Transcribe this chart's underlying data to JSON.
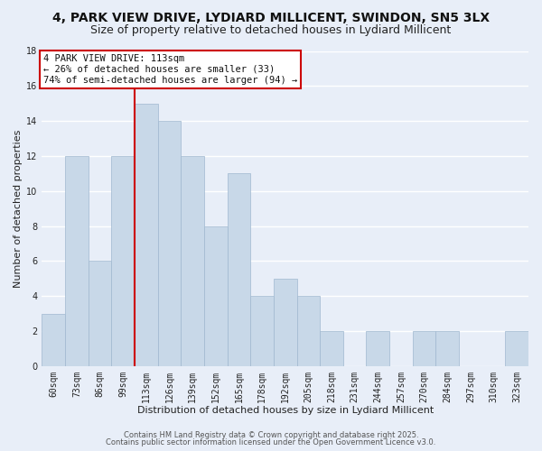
{
  "title": "4, PARK VIEW DRIVE, LYDIARD MILLICENT, SWINDON, SN5 3LX",
  "subtitle": "Size of property relative to detached houses in Lydiard Millicent",
  "xlabel": "Distribution of detached houses by size in Lydiard Millicent",
  "ylabel": "Number of detached properties",
  "bin_labels": [
    "60sqm",
    "73sqm",
    "86sqm",
    "99sqm",
    "113sqm",
    "126sqm",
    "139sqm",
    "152sqm",
    "165sqm",
    "178sqm",
    "192sqm",
    "205sqm",
    "218sqm",
    "231sqm",
    "244sqm",
    "257sqm",
    "270sqm",
    "284sqm",
    "297sqm",
    "310sqm",
    "323sqm"
  ],
  "bar_heights": [
    3,
    12,
    6,
    12,
    15,
    14,
    12,
    8,
    11,
    4,
    5,
    4,
    2,
    0,
    2,
    0,
    2,
    2,
    0,
    0,
    2
  ],
  "bar_color": "#c8d8e8",
  "bar_edge_color": "#a0b8d0",
  "highlight_line_index": 4,
  "annotation_title": "4 PARK VIEW DRIVE: 113sqm",
  "annotation_line1": "← 26% of detached houses are smaller (33)",
  "annotation_line2": "74% of semi-detached houses are larger (94) →",
  "annotation_box_color": "#ffffff",
  "annotation_box_edge_color": "#cc0000",
  "ylim": [
    0,
    18
  ],
  "yticks": [
    0,
    2,
    4,
    6,
    8,
    10,
    12,
    14,
    16,
    18
  ],
  "footer_line1": "Contains HM Land Registry data © Crown copyright and database right 2025.",
  "footer_line2": "Contains public sector information licensed under the Open Government Licence v3.0.",
  "bg_color": "#e8eef8",
  "grid_color": "#ffffff",
  "title_fontsize": 10,
  "subtitle_fontsize": 9,
  "axis_label_fontsize": 8,
  "tick_fontsize": 7,
  "footer_fontsize": 6,
  "annotation_fontsize": 7.5
}
